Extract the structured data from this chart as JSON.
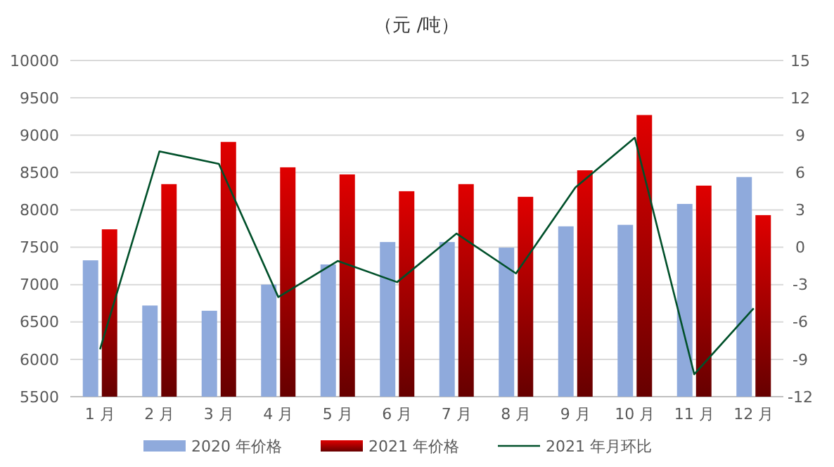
{
  "chart_data": {
    "type": "bar",
    "title": "（元 /吨）",
    "categories": [
      "1 月",
      "2 月",
      "3 月",
      "4 月",
      "5 月",
      "6 月",
      "7 月",
      "8 月",
      "9 月",
      "10 月",
      "11 月",
      "12 月"
    ],
    "series": [
      {
        "name": "2020 年价格",
        "color": "#8faadc",
        "values": [
          7325,
          6720,
          6650,
          7000,
          7270,
          7570,
          7570,
          7495,
          7780,
          7800,
          8080,
          8440
        ]
      },
      {
        "name": "2021 年价格",
        "color": "#e00000",
        "values": [
          7740,
          8345,
          8910,
          8570,
          8475,
          8250,
          8345,
          8175,
          8530,
          9270,
          8325,
          7930
        ]
      },
      {
        "name": "2021 年月环比",
        "type": "line",
        "axis": "y2",
        "color": "#00502a",
        "values": [
          -8.2,
          7.7,
          6.7,
          -4.0,
          -1.1,
          -2.8,
          1.1,
          -2.1,
          4.8,
          8.8,
          -10.2,
          -4.9
        ]
      }
    ],
    "ylim": [
      5500,
      10000
    ],
    "yticks": [
      5500,
      6000,
      6500,
      7000,
      7500,
      8000,
      8500,
      9000,
      9500,
      10000
    ],
    "y2lim": [
      -12,
      15
    ],
    "y2ticks": [
      -12,
      -9,
      -6,
      -3,
      0,
      3,
      6,
      9,
      12,
      15
    ],
    "grid": "y",
    "legend": "bottom",
    "marker": "none",
    "line_style": "solid"
  }
}
